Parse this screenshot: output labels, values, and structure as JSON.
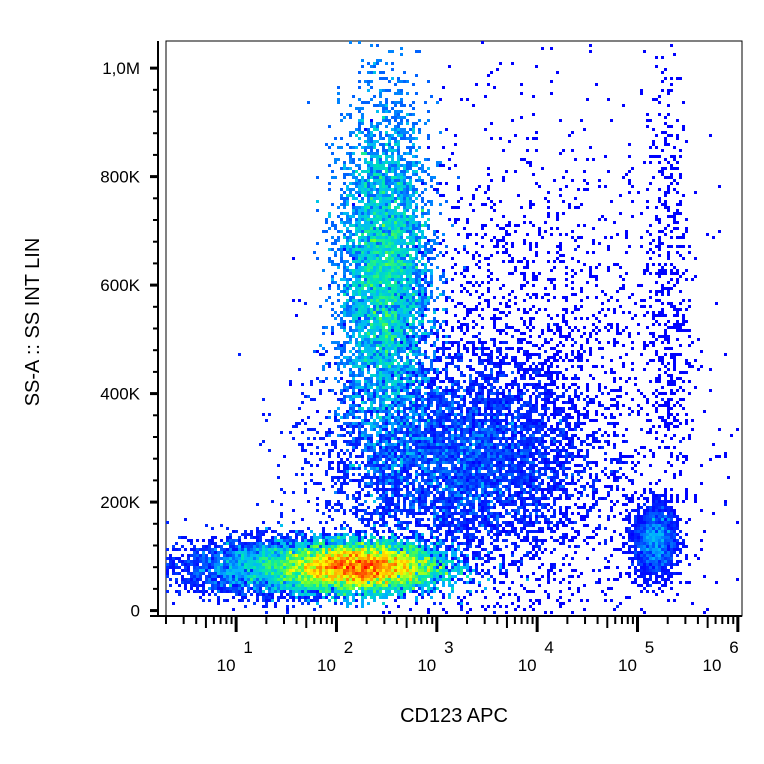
{
  "chart_data": {
    "type": "scatter",
    "title": "",
    "xlabel": "CD123 APC",
    "ylabel": "SS-A :: SS INT LIN",
    "x_scale": "log",
    "x_ticks": [
      {
        "value": 10,
        "base": "10",
        "exp": "1"
      },
      {
        "value": 100,
        "base": "10",
        "exp": "2"
      },
      {
        "value": 1000,
        "base": "10",
        "exp": "3"
      },
      {
        "value": 10000,
        "base": "10",
        "exp": "4"
      },
      {
        "value": 100000,
        "base": "10",
        "exp": "5"
      },
      {
        "value": 1000000,
        "base": "10",
        "exp": "6"
      }
    ],
    "y_ticks": [
      {
        "value": 0,
        "label": "0"
      },
      {
        "value": 200000,
        "label": "200K"
      },
      {
        "value": 400000,
        "label": "400K"
      },
      {
        "value": 600000,
        "label": "600K"
      },
      {
        "value": 800000,
        "label": "800K"
      },
      {
        "value": 1000000,
        "label": "1,0M"
      }
    ],
    "xlim": [
      2,
      1100000
    ],
    "ylim": [
      -10000,
      1050000
    ],
    "colormap": [
      "#0000ff",
      "#00b4ff",
      "#00e6b4",
      "#5aff3c",
      "#ffff00",
      "#ff8c00",
      "#ff0000"
    ],
    "populations": [
      {
        "x_center": 170,
        "y_center": 80000,
        "x_spread": 0.28,
        "y_spread": 22000,
        "weight": 0.3,
        "peak": 1.0
      },
      {
        "x_center": 300,
        "y_center": 620000,
        "x_spread": 0.16,
        "y_spread": 150000,
        "weight": 0.3,
        "peak": 0.55
      },
      {
        "x_center": 1500,
        "y_center": 280000,
        "x_spread": 0.45,
        "y_spread": 90000,
        "weight": 0.16,
        "peak": 0.3
      },
      {
        "x_center": 30,
        "y_center": 80000,
        "x_spread": 0.35,
        "y_spread": 25000,
        "weight": 0.12,
        "peak": 0.35
      },
      {
        "x_center": 150000,
        "y_center": 130000,
        "x_spread": 0.08,
        "y_spread": 35000,
        "weight": 0.025,
        "peak": 0.3
      },
      {
        "x_center": 200000,
        "y_center": 600000,
        "x_spread": 0.08,
        "y_spread": 230000,
        "weight": 0.008,
        "peak": 0.1
      },
      {
        "x_center": 8000,
        "y_center": 350000,
        "x_spread": 0.55,
        "y_spread": 250000,
        "weight": 0.05,
        "peak": 0.1
      }
    ]
  }
}
